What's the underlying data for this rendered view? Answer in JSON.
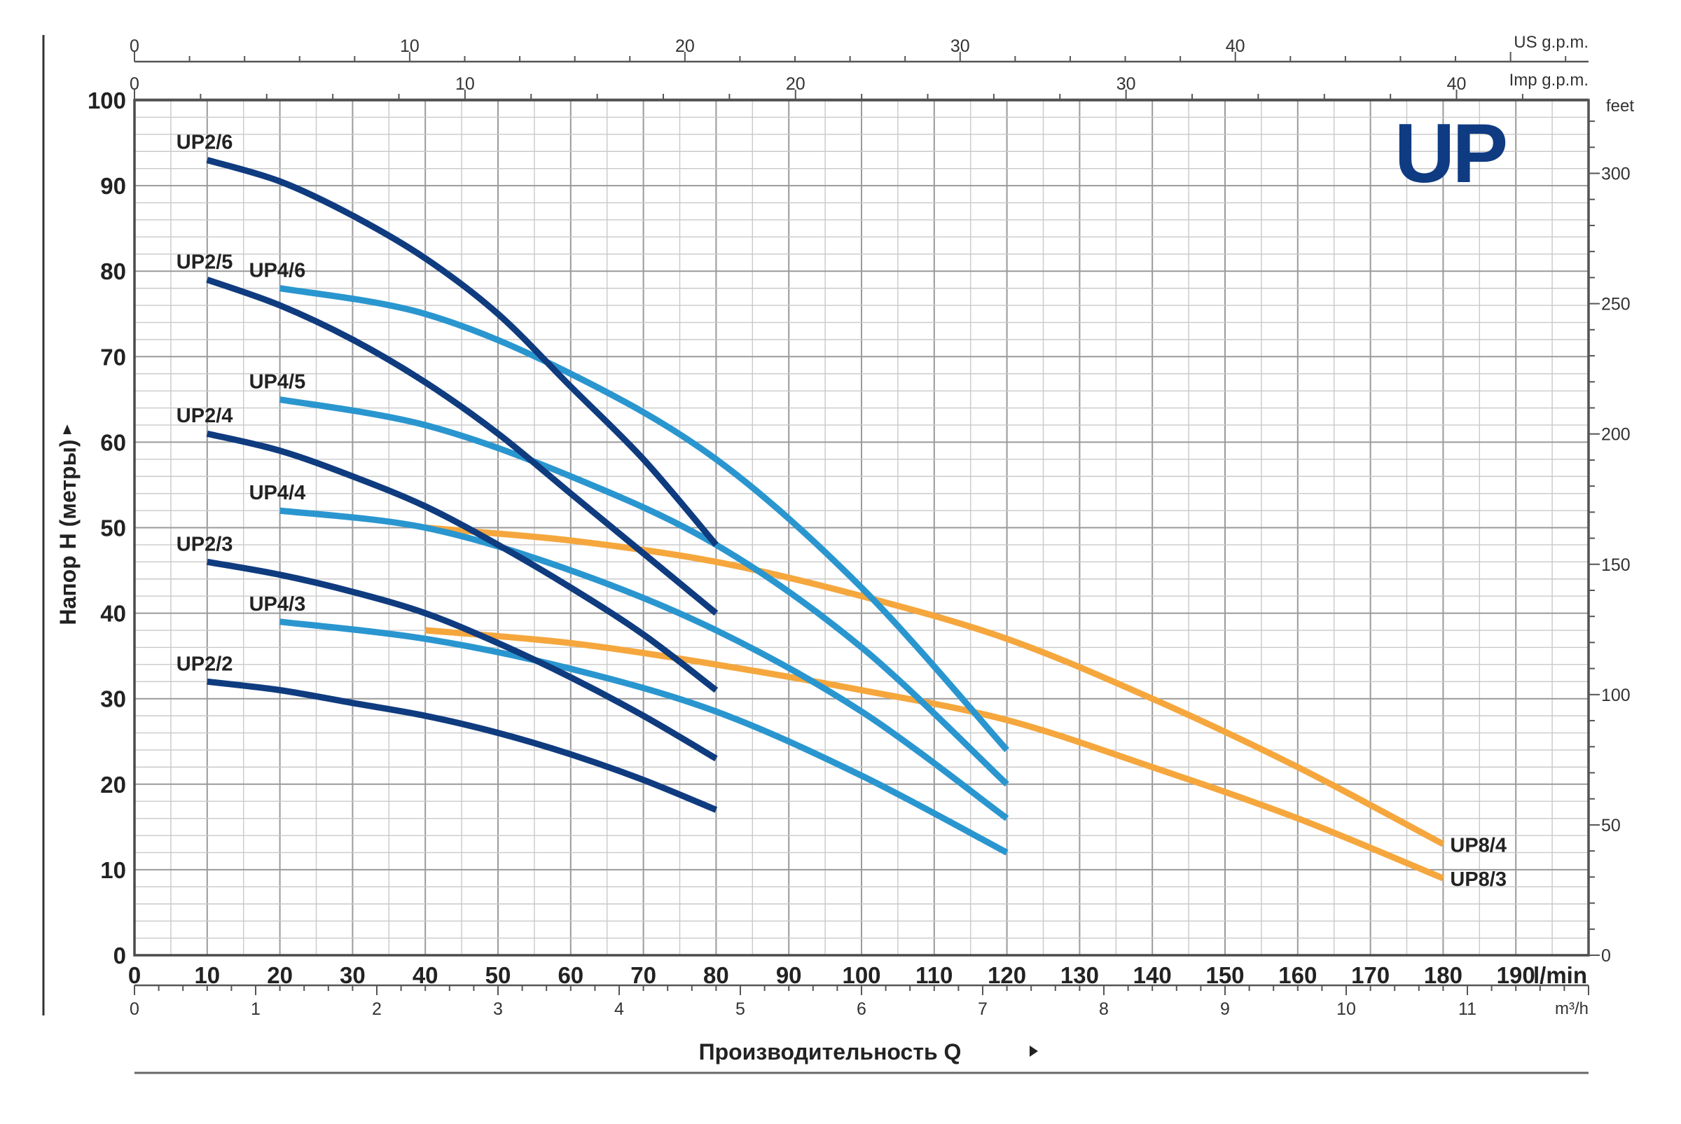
{
  "chart_data": {
    "type": "line",
    "logo_text": "UP",
    "ylabel": "Напор H (метры)",
    "xlabel": "Производительность Q",
    "x_unit_primary": "l/min",
    "x_unit_mh": "m³/h",
    "x_unit_us": "US g.p.m.",
    "x_unit_imp": "Imp g.p.m.",
    "y_unit_feet": "feet",
    "xlim": [
      0,
      200
    ],
    "ylim": [
      0,
      100
    ],
    "x_ticks": [
      "0",
      "10",
      "20",
      "30",
      "40",
      "50",
      "60",
      "70",
      "80",
      "90",
      "100",
      "110",
      "120",
      "130",
      "140",
      "150",
      "160",
      "170",
      "180",
      "190"
    ],
    "y_ticks": [
      "0",
      "10",
      "20",
      "30",
      "40",
      "50",
      "60",
      "70",
      "80",
      "90",
      "100"
    ],
    "mh_ticks": [
      "0",
      "1",
      "2",
      "3",
      "4",
      "5",
      "6",
      "7",
      "8",
      "9",
      "10",
      "11"
    ],
    "us_ticks": [
      "0",
      "10",
      "20",
      "30",
      "40"
    ],
    "imp_ticks": [
      "0",
      "10",
      "20",
      "30",
      "40"
    ],
    "feet_ticks": [
      "0",
      "50",
      "100",
      "150",
      "200",
      "250",
      "300"
    ],
    "colors": {
      "UP2": "#0f3b7f",
      "UP4": "#2a96cf",
      "UP8": "#f5a73d"
    },
    "series": [
      {
        "name": "UP2/6",
        "group": "UP2",
        "label_pos": "left",
        "x": [
          10,
          20,
          30,
          40,
          50,
          60,
          70,
          80
        ],
        "y": [
          93,
          90.5,
          86.5,
          81.5,
          75,
          66.5,
          58,
          48
        ]
      },
      {
        "name": "UP2/5",
        "group": "UP2",
        "label_pos": "left",
        "x": [
          10,
          20,
          30,
          40,
          50,
          60,
          70,
          80
        ],
        "y": [
          79,
          76,
          72,
          67,
          61,
          54,
          47,
          40
        ]
      },
      {
        "name": "UP2/4",
        "group": "UP2",
        "label_pos": "left",
        "x": [
          10,
          20,
          30,
          40,
          50,
          60,
          70,
          80
        ],
        "y": [
          61,
          59,
          56,
          52.5,
          48,
          43,
          37.5,
          31
        ]
      },
      {
        "name": "UP2/3",
        "group": "UP2",
        "label_pos": "left",
        "x": [
          10,
          20,
          30,
          40,
          50,
          60,
          70,
          80
        ],
        "y": [
          46,
          44.5,
          42.5,
          40,
          36.5,
          32.5,
          28,
          23
        ]
      },
      {
        "name": "UP2/2",
        "group": "UP2",
        "label_pos": "left",
        "x": [
          10,
          20,
          30,
          40,
          50,
          60,
          70,
          80
        ],
        "y": [
          32,
          31,
          29.5,
          28,
          26,
          23.5,
          20.5,
          17
        ]
      },
      {
        "name": "UP4/6",
        "group": "UP4",
        "label_pos": "left",
        "x": [
          20,
          40,
          60,
          80,
          100,
          120
        ],
        "y": [
          78,
          75,
          68,
          58,
          43,
          24
        ]
      },
      {
        "name": "UP4/5",
        "group": "UP4",
        "label_pos": "left",
        "x": [
          20,
          40,
          60,
          80,
          100,
          120
        ],
        "y": [
          65,
          62,
          56,
          48,
          36,
          20
        ]
      },
      {
        "name": "UP4/4",
        "group": "UP4",
        "label_pos": "left",
        "x": [
          20,
          40,
          60,
          80,
          100,
          120
        ],
        "y": [
          52,
          50,
          45,
          38,
          28.5,
          16
        ]
      },
      {
        "name": "UP4/3",
        "group": "UP4",
        "label_pos": "left",
        "x": [
          20,
          40,
          60,
          80,
          100,
          120
        ],
        "y": [
          39,
          37,
          33.5,
          28.5,
          21,
          12
        ]
      },
      {
        "name": "UP8/4",
        "group": "UP8",
        "label_pos": "right",
        "x": [
          40,
          60,
          80,
          100,
          120,
          140,
          160,
          180
        ],
        "y": [
          50,
          48.5,
          46,
          42,
          37,
          30,
          22,
          13
        ]
      },
      {
        "name": "UP8/3",
        "group": "UP8",
        "label_pos": "right",
        "x": [
          40,
          60,
          80,
          100,
          120,
          140,
          160,
          180
        ],
        "y": [
          38,
          36.5,
          34,
          31,
          27.5,
          22,
          16,
          9
        ]
      }
    ]
  }
}
